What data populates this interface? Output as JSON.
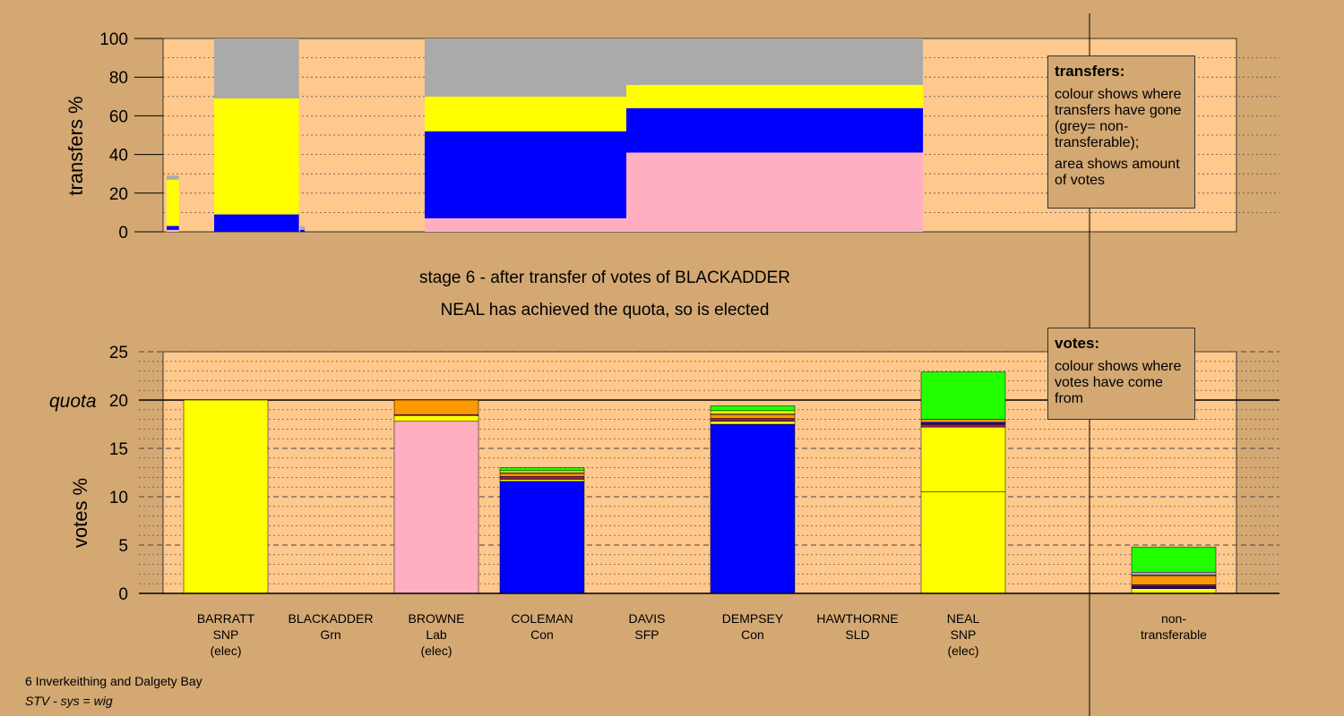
{
  "top_ylabel": "transfers %",
  "bottom_ylabel": "votes %",
  "caption_line1": "stage 6 - after transfer of votes of BLACKADDER",
  "caption_line2": "NEAL has achieved the quota, so is elected",
  "quota_label": "quota",
  "footer_line1": "6 Inverkeithing and Dalgety Bay",
  "footer_line2": "STV - sys = wig",
  "legend_transfers": {
    "title": "transfers:",
    "line1": "colour shows where transfers have gone (grey= non-transferable);",
    "line2": "area shows amount of votes"
  },
  "legend_votes": {
    "title": "votes:",
    "line1": "colour shows where votes have come from"
  },
  "candidates": [
    {
      "name": "BARRATT",
      "party": "SNP",
      "status": "(elec)"
    },
    {
      "name": "BLACKADDER",
      "party": "Grn",
      "status": ""
    },
    {
      "name": "BROWNE",
      "party": "Lab",
      "status": "(elec)"
    },
    {
      "name": "COLEMAN",
      "party": "Con",
      "status": ""
    },
    {
      "name": "DAVIS",
      "party": "SFP",
      "status": ""
    },
    {
      "name": "DEMPSEY",
      "party": "Con",
      "status": ""
    },
    {
      "name": "HAWTHORNE",
      "party": "SLD",
      "status": ""
    },
    {
      "name": "NEAL",
      "party": "SNP",
      "status": "(elec)"
    },
    {
      "name": "non-",
      "party": "transferable",
      "status": ""
    }
  ],
  "colors": {
    "SNP": "#ffff00",
    "Grn": "#22ff00",
    "Lab": "#ffafc0",
    "Con": "#0000ff",
    "SLD": "#ff9900",
    "SFP": "#8b2252",
    "nontransferable": "#aaaaaa",
    "panel": "#ffc88c",
    "background": "#d4a872"
  },
  "chart_data": [
    {
      "type": "bar",
      "title": "transfers",
      "ylabel": "transfers %",
      "ylim": [
        0,
        100
      ],
      "yticks": [
        0,
        20,
        40,
        60,
        80,
        100
      ],
      "grid": true,
      "bars": [
        {
          "stages": 1,
          "segments": [
            {
              "party": "Lab",
              "value": 1
            },
            {
              "party": "Con",
              "value": 2
            },
            {
              "party": "SNP",
              "value": 24
            },
            {
              "party": "nontransferable",
              "value": 2
            }
          ]
        },
        {
          "stages": 2,
          "segments": [
            {
              "party": "Con",
              "value": 9
            },
            {
              "party": "SNP",
              "value": 60
            },
            {
              "party": "nontransferable",
              "value": 31
            }
          ]
        },
        {
          "stages": 3,
          "segments": [
            {
              "party": "Con",
              "value": 1
            },
            {
              "party": "nontransferable",
              "value": 2
            }
          ]
        },
        {
          "stages": 5,
          "segments": [
            {
              "party": "Lab",
              "value": 7
            },
            {
              "party": "Con",
              "value": 45
            },
            {
              "party": "SNP",
              "value": 18
            },
            {
              "party": "nontransferable",
              "value": 30
            }
          ]
        },
        {
          "stages": 7,
          "segments": [
            {
              "party": "Lab",
              "value": 41
            },
            {
              "party": "Con",
              "value": 23
            },
            {
              "party": "SNP",
              "value": 12
            },
            {
              "party": "nontransferable",
              "value": 24
            }
          ]
        }
      ]
    },
    {
      "type": "bar",
      "title": "votes",
      "ylabel": "votes %",
      "ylim": [
        0,
        25
      ],
      "yticks": [
        0,
        5,
        10,
        15,
        20,
        25
      ],
      "quota": 20,
      "grid": true,
      "categories": [
        "BARRATT",
        "BLACKADDER",
        "BROWNE",
        "COLEMAN",
        "DAVIS",
        "DEMPSEY",
        "HAWTHORNE",
        "NEAL",
        "non-transferable"
      ],
      "stacks": [
        [
          {
            "party": "SNP",
            "value": 20
          }
        ],
        [],
        [
          {
            "party": "Lab",
            "value": 17.8
          },
          {
            "party": "SNP",
            "value": 0.6
          },
          {
            "party": "SFP",
            "value": 0.1
          },
          {
            "party": "SLD",
            "value": 1.5
          }
        ],
        [
          {
            "party": "Con",
            "value": 11.6
          },
          {
            "party": "SNP",
            "value": 0.2
          },
          {
            "party": "SFP",
            "value": 0.3
          },
          {
            "party": "SLD",
            "value": 0.3
          },
          {
            "party": "Lab",
            "value": 0.1
          },
          {
            "party": "SNP",
            "value": 0.2
          },
          {
            "party": "Grn",
            "value": 0.3
          }
        ],
        [],
        [
          {
            "party": "Con",
            "value": 17.5
          },
          {
            "party": "SNP",
            "value": 0.3
          },
          {
            "party": "SFP",
            "value": 0.3
          },
          {
            "party": "SLD",
            "value": 0.4
          },
          {
            "party": "Lab",
            "value": 0.1
          },
          {
            "party": "SNP",
            "value": 0.3
          },
          {
            "party": "Grn",
            "value": 0.5
          }
        ],
        [],
        [
          {
            "party": "SNP",
            "value": 10.5
          },
          {
            "party": "SNP",
            "value": 6.7
          },
          {
            "party": "SFP",
            "value": 0.3
          },
          {
            "party": "Con",
            "value": 0.2
          },
          {
            "party": "SLD",
            "value": 0.3
          },
          {
            "party": "Grn",
            "value": 4.9
          }
        ],
        [
          {
            "party": "SNP",
            "value": 0.5
          },
          {
            "party": "Con",
            "value": 0.2
          },
          {
            "party": "SFP",
            "value": 0.2
          },
          {
            "party": "SLD",
            "value": 0.9
          },
          {
            "party": "Lab",
            "value": 0.1
          },
          {
            "party": "nontransferable",
            "value": 0.3
          },
          {
            "party": "Grn",
            "value": 2.6
          }
        ]
      ]
    }
  ]
}
